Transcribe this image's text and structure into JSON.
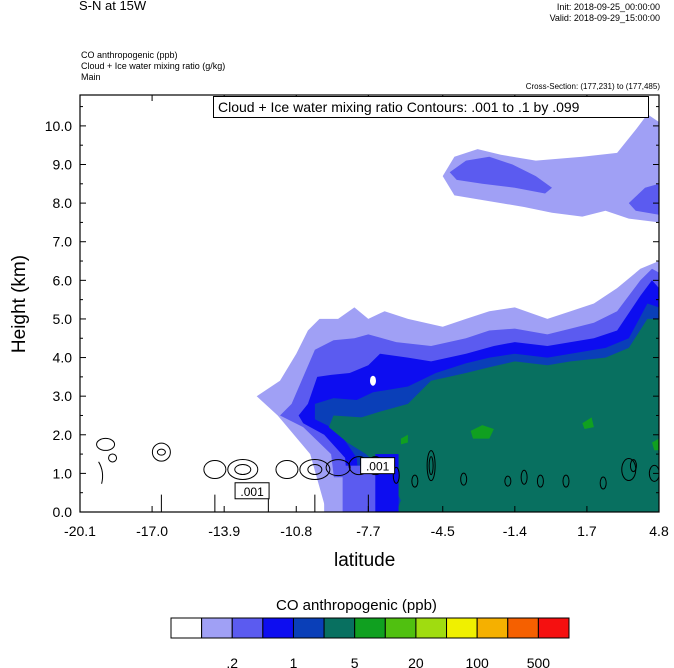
{
  "header": {
    "title": "S-N at 15W",
    "init": "Init: 2018-09-25_00:00:00",
    "valid": "Valid: 2018-09-29_15:00:00",
    "fields": [
      "CO anthropogenic   (ppb)",
      "Cloud + Ice water mixing ratio   (g/kg)",
      "Main"
    ],
    "cross_section": "Cross-Section: (177,231) to (177,485)"
  },
  "chart_data": {
    "type": "heatmap",
    "title": "S-N at 15W",
    "xlabel": "latitude",
    "ylabel": "Height (km)",
    "xlim": [
      -20.1,
      4.8
    ],
    "ylim": [
      0.0,
      10.8
    ],
    "x_ticks": [
      "-20.1",
      "-17.0",
      "-13.9",
      "-10.8",
      "-7.7",
      "-4.5",
      "-1.4",
      "1.7",
      "4.8"
    ],
    "y_ticks": [
      "0.0",
      "1.0",
      "2.0",
      "3.0",
      "4.0",
      "5.0",
      "6.0",
      "7.0",
      "8.0",
      "9.0",
      "10.0"
    ],
    "contour_info": "Cloud + Ice water mixing ratio Contours: .001 to .1 by .099",
    "contour_labels": [
      ".001",
      ".001"
    ],
    "colorbar": {
      "title": "CO anthropogenic  (ppb)",
      "colors": [
        "#ffffff",
        "#a0a0f5",
        "#5b5bf0",
        "#0d0df0",
        "#0a3fb8",
        "#087060",
        "#10a020",
        "#50c010",
        "#a0dc10",
        "#f0f000",
        "#f5b000",
        "#f56000",
        "#f51010"
      ],
      "tick_labels": [
        ".2",
        "1",
        "5",
        "20",
        "100",
        "500"
      ]
    },
    "fields": {
      "co_region_top_km": [
        {
          "lat": -9.5,
          "light": 4.9,
          "medium": 4.4,
          "dark": 3.5,
          "teal": 2.5
        },
        {
          "lat": -7.7,
          "light": 5.2,
          "medium": 4.6,
          "dark": 4.0,
          "teal": 2.6
        },
        {
          "lat": -4.5,
          "light": 4.8,
          "medium": 4.3,
          "dark": 3.9,
          "teal": 3.5
        },
        {
          "lat": -1.4,
          "light": 5.2,
          "medium": 4.7,
          "dark": 4.3,
          "teal": 3.9
        },
        {
          "lat": 1.7,
          "light": 5.3,
          "medium": 4.9,
          "dark": 4.5,
          "teal": 4.1
        },
        {
          "lat": 4.8,
          "light": 6.5,
          "medium": 6.2,
          "dark": 5.8,
          "teal": 5.0
        }
      ],
      "upper_layer_km": {
        "lat_start": -4.5,
        "lat_end": 4.8,
        "bottom": 7.5,
        "top": 9.3
      }
    }
  }
}
